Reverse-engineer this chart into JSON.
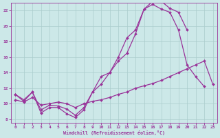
{
  "xlabel": "Windchill (Refroidissement éolien,°C)",
  "background_color": "#cce8e8",
  "grid_color": "#aacccc",
  "line_color": "#993399",
  "xlim": [
    -0.5,
    23.5
  ],
  "ylim": [
    7.5,
    23
  ],
  "xticks": [
    0,
    1,
    2,
    3,
    4,
    5,
    6,
    7,
    8,
    9,
    10,
    11,
    12,
    13,
    14,
    15,
    16,
    17,
    18,
    19,
    20,
    21,
    22,
    23
  ],
  "yticks": [
    8,
    10,
    12,
    14,
    16,
    18,
    20,
    22
  ],
  "line1_x": [
    0,
    1,
    2,
    3,
    4,
    5,
    6,
    7,
    8,
    9,
    10,
    11,
    12,
    13,
    14,
    15,
    16,
    17,
    18,
    19,
    20,
    21,
    22
  ],
  "line1_y": [
    11.2,
    10.3,
    11.5,
    8.8,
    9.5,
    9.5,
    8.7,
    8.2,
    9.2,
    11.5,
    13.5,
    14.0,
    16.0,
    18.5,
    19.5,
    22.2,
    22.8,
    22.2,
    21.8,
    19.5,
    15.0,
    13.5,
    12.2
  ],
  "line2_x": [
    0,
    1,
    2,
    3,
    4,
    5,
    6,
    7,
    8,
    9,
    10,
    11,
    12,
    13,
    14,
    15,
    16,
    17,
    18,
    19,
    20
  ],
  "line2_y": [
    11.2,
    10.5,
    11.5,
    9.2,
    9.8,
    9.7,
    9.3,
    8.5,
    9.5,
    11.5,
    12.5,
    14.0,
    15.5,
    16.5,
    19.0,
    22.2,
    23.2,
    23.2,
    22.3,
    21.8,
    19.5
  ],
  "line3_x": [
    0,
    1,
    2,
    3,
    4,
    5,
    6,
    7,
    8,
    9,
    10,
    11,
    12,
    13,
    14,
    15,
    16,
    17,
    18,
    19,
    20,
    21,
    22,
    23
  ],
  "line3_y": [
    10.5,
    10.2,
    10.8,
    9.8,
    10.0,
    10.2,
    10.0,
    9.5,
    10.0,
    10.3,
    10.5,
    10.8,
    11.2,
    11.5,
    12.0,
    12.3,
    12.6,
    13.0,
    13.5,
    14.0,
    14.5,
    15.0,
    15.5,
    12.5
  ]
}
